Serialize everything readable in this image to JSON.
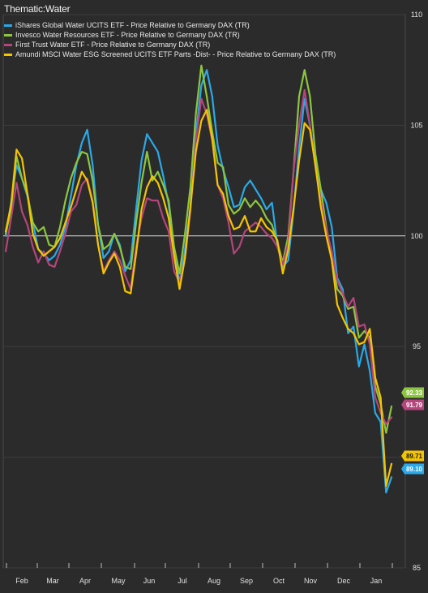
{
  "chart_data": {
    "type": "line",
    "title": "Thematic:Water",
    "xlabel": "",
    "ylabel": "",
    "ylim": [
      85,
      110
    ],
    "yticks": [
      85,
      90,
      95,
      100,
      105,
      110
    ],
    "months": [
      "Feb",
      "Mar",
      "Apr",
      "May",
      "Jun",
      "Jul",
      "Aug",
      "Sep",
      "Oct",
      "Nov",
      "Dec",
      "Jan"
    ],
    "reference_line": 100,
    "legend_position": "top-left",
    "grid": true,
    "series": [
      {
        "name": "iShares Global Water UCITS ETF - Price Relative to Germany DAX (TR)",
        "color": "#29a9e8",
        "last_label": "89.10",
        "values": [
          100.0,
          101.5,
          103.2,
          102.6,
          101.8,
          100.6,
          99.4,
          99.2,
          98.9,
          99.1,
          99.6,
          100.4,
          101.8,
          103.2,
          104.2,
          104.8,
          103.2,
          100.5,
          99.0,
          99.3,
          100.1,
          99.6,
          98.4,
          98.9,
          101.2,
          103.4,
          104.6,
          104.2,
          103.8,
          102.7,
          101.4,
          99.2,
          97.9,
          99.4,
          101.3,
          104.6,
          106.8,
          107.5,
          106.3,
          104.1,
          103.0,
          102.2,
          101.3,
          101.4,
          102.2,
          102.5,
          102.1,
          101.7,
          101.2,
          101.5,
          99.6,
          98.6,
          98.9,
          101.2,
          104.0,
          106.2,
          105.0,
          103.3,
          102.1,
          101.5,
          100.4,
          98.1,
          97.6,
          95.6,
          95.9,
          94.1,
          95.1,
          93.9,
          92.0,
          91.6,
          88.4,
          89.1
        ]
      },
      {
        "name": "Invesco Water Resources ETF - Price Relative to Germany DAX (TR)",
        "color": "#8cc63f",
        "last_label": "92.33",
        "values": [
          100.1,
          101.2,
          103.6,
          102.6,
          101.9,
          100.6,
          100.2,
          100.4,
          99.6,
          99.5,
          100.4,
          101.6,
          102.6,
          103.3,
          103.8,
          103.7,
          102.5,
          100.5,
          99.4,
          99.6,
          100.1,
          99.5,
          98.6,
          98.5,
          100.6,
          102.4,
          103.8,
          102.5,
          102.9,
          102.3,
          101.6,
          99.5,
          98.3,
          100.1,
          102.2,
          105.5,
          107.7,
          106.3,
          104.7,
          103.3,
          103.1,
          101.4,
          101.0,
          101.2,
          101.7,
          101.3,
          101.6,
          101.3,
          100.8,
          100.5,
          99.7,
          98.8,
          100.0,
          103.0,
          106.3,
          107.5,
          106.3,
          103.7,
          102.1,
          100.4,
          99.1,
          97.6,
          97.3,
          96.7,
          96.8,
          95.4,
          95.7,
          95.4,
          93.2,
          92.4,
          91.1,
          92.3
        ]
      },
      {
        "name": "First Trust Water ETF - Price Relative to Germany DAX (TR)",
        "color": "#b5457c",
        "last_label": "91.79",
        "values": [
          99.3,
          100.8,
          102.4,
          101.1,
          100.5,
          99.5,
          98.8,
          99.3,
          98.7,
          98.6,
          99.3,
          100.1,
          101.1,
          101.4,
          102.3,
          102.6,
          101.6,
          99.6,
          98.4,
          98.9,
          99.3,
          98.9,
          98.2,
          97.6,
          99.5,
          100.8,
          101.7,
          101.6,
          101.6,
          100.8,
          100.2,
          98.4,
          97.9,
          99.0,
          101.1,
          104.3,
          106.2,
          105.5,
          104.3,
          102.3,
          101.7,
          100.6,
          99.2,
          99.5,
          100.2,
          100.4,
          100.6,
          100.4,
          100.1,
          99.9,
          99.5,
          98.7,
          99.7,
          103.0,
          105.0,
          106.6,
          105.0,
          103.1,
          101.6,
          100.3,
          99.3,
          98.0,
          97.4,
          96.8,
          97.2,
          95.9,
          96.0,
          95.1,
          92.7,
          92.0,
          91.5,
          91.8
        ]
      },
      {
        "name": "Amundi MSCI Water ESG Screened UCITS ETF Parts -Dist- - Price Relative to Germany DAX (TR)",
        "color": "#f5c400",
        "last_label": "89.71",
        "values": [
          100.2,
          101.4,
          103.9,
          103.5,
          101.9,
          100.1,
          99.4,
          99.1,
          99.3,
          99.5,
          99.9,
          100.6,
          101.3,
          102.1,
          102.9,
          102.5,
          101.5,
          99.6,
          98.3,
          98.8,
          99.2,
          98.6,
          97.5,
          97.4,
          99.2,
          101.2,
          102.2,
          102.7,
          102.4,
          101.7,
          100.8,
          99.1,
          97.6,
          99.0,
          101.3,
          103.8,
          105.2,
          105.7,
          104.4,
          102.3,
          101.9,
          100.9,
          100.3,
          100.4,
          100.9,
          100.2,
          100.2,
          100.8,
          100.4,
          100.2,
          99.8,
          98.3,
          99.4,
          101.3,
          103.4,
          105.1,
          104.8,
          103.2,
          101.3,
          100.0,
          98.9,
          96.9,
          96.3,
          95.8,
          95.6,
          95.1,
          95.2,
          95.8,
          93.6,
          92.7,
          88.7,
          89.7
        ]
      }
    ]
  }
}
